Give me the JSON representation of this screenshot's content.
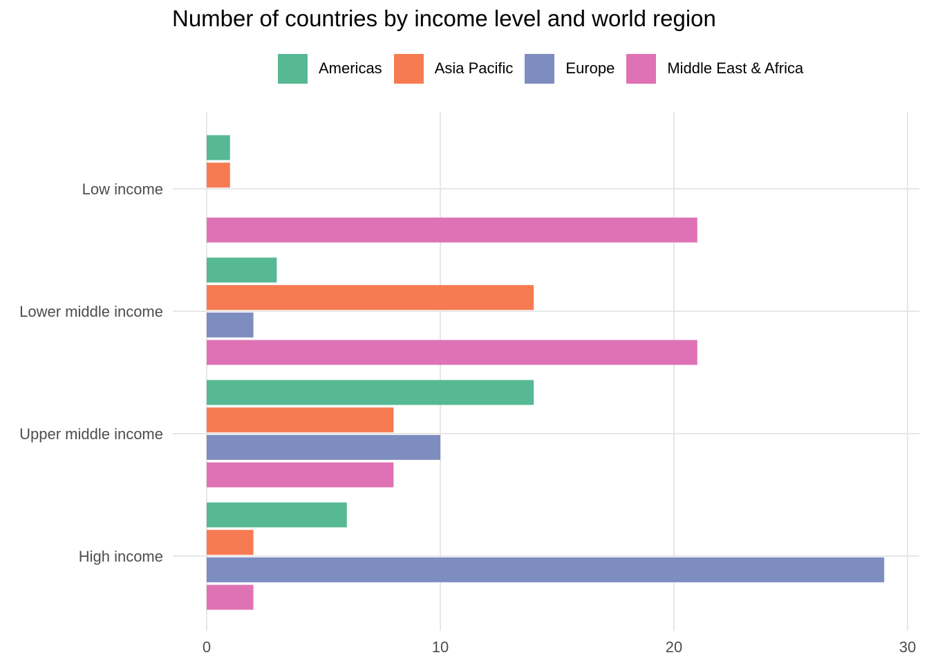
{
  "chart_data": {
    "type": "bar",
    "orientation": "horizontal",
    "title": "Number of countries by income level and world region",
    "xlabel": "",
    "ylabel": "",
    "categories": [
      "Low income",
      "Lower middle income",
      "Upper middle income",
      "High income"
    ],
    "series": [
      {
        "name": "Americas",
        "color": "#56B993",
        "values": [
          1,
          3,
          14,
          6
        ]
      },
      {
        "name": "Asia Pacific",
        "color": "#F77B52",
        "values": [
          1,
          14,
          8,
          2
        ]
      },
      {
        "name": "Europe",
        "color": "#7E8DBF",
        "values": [
          null,
          2,
          10,
          29
        ]
      },
      {
        "name": "Middle East & Africa",
        "color": "#DF72B5",
        "values": [
          21,
          21,
          8,
          2
        ]
      }
    ],
    "xlim": [
      0,
      30
    ],
    "xticks": [
      0,
      10,
      20,
      30
    ],
    "grid": true,
    "legend_position": "top"
  }
}
